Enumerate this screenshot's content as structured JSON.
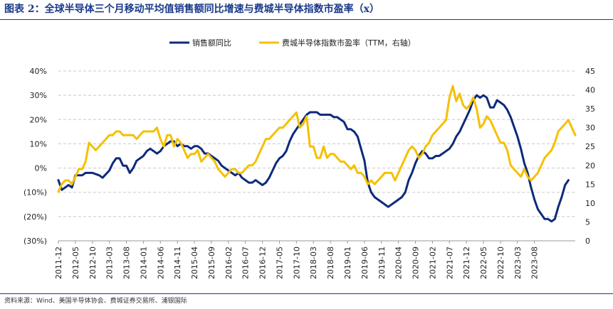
{
  "header": {
    "title": "图表 2：全球半导体三个月移动平均值销售额同比增速与费城半导体指数市盈率（x）"
  },
  "footer": {
    "source": "资料来源：Wind、美国半导体协会、费城证券交易所、浦银国际"
  },
  "colors": {
    "sales": "#0d2a7a",
    "pe": "#f5c000",
    "grid": "#c8c8c8"
  },
  "chart_data": {
    "type": "line",
    "title": "全球半导体三个月移动平均值销售额同比增速与费城半导体指数市盈率（x）",
    "legend_position": "top-center",
    "x_tick_labels": [
      "2011-12",
      "2012-05",
      "2012-10",
      "2013-03",
      "2013-08",
      "2014-01",
      "2014-06",
      "2014-11",
      "2015-04",
      "2015-09",
      "2016-02",
      "2016-07",
      "2016-12",
      "2017-05",
      "2017-10",
      "2018-03",
      "2018-08",
      "2019-01",
      "2019-06",
      "2019-11",
      "2020-04",
      "2020-09",
      "2021-02",
      "2021-07",
      "2021-12",
      "2022-05",
      "2022-10",
      "2023-03",
      "2023-08"
    ],
    "left_axis": {
      "ylim": [
        -30,
        40
      ],
      "ticks": [
        "(30%)",
        "(20%)",
        "(10%)",
        "0%",
        "10%",
        "20%",
        "30%",
        "40%"
      ],
      "tick_values": [
        -30,
        -20,
        -10,
        0,
        10,
        20,
        30,
        40
      ]
    },
    "right_axis": {
      "ylim": [
        0,
        45
      ],
      "ticks": [
        "0",
        "5",
        "10",
        "15",
        "20",
        "25",
        "30",
        "35",
        "40",
        "45"
      ],
      "tick_values": [
        0,
        5,
        10,
        15,
        20,
        25,
        30,
        35,
        40,
        45
      ]
    },
    "series": [
      {
        "name": "销售额同比",
        "axis": "left",
        "points": [
          [
            0,
            -5
          ],
          [
            1,
            -9
          ],
          [
            3,
            -7
          ],
          [
            4,
            -8
          ],
          [
            5,
            -3
          ],
          [
            7,
            -3
          ],
          [
            8,
            -2
          ],
          [
            10,
            -2
          ],
          [
            12,
            -3
          ],
          [
            13,
            -4
          ],
          [
            15,
            -1
          ],
          [
            16,
            2
          ],
          [
            17,
            4
          ],
          [
            18,
            4
          ],
          [
            19,
            1
          ],
          [
            20,
            1
          ],
          [
            21,
            -2
          ],
          [
            22,
            0
          ],
          [
            23,
            3
          ],
          [
            25,
            5
          ],
          [
            26,
            7
          ],
          [
            27,
            8
          ],
          [
            28,
            7
          ],
          [
            29,
            6
          ],
          [
            30,
            7
          ],
          [
            31,
            9
          ],
          [
            32,
            10
          ],
          [
            33,
            11
          ],
          [
            34,
            11
          ],
          [
            35,
            9
          ],
          [
            36,
            10
          ],
          [
            37,
            9
          ],
          [
            38,
            9
          ],
          [
            39,
            8
          ],
          [
            40,
            9
          ],
          [
            41,
            9
          ],
          [
            42,
            8
          ],
          [
            43,
            6
          ],
          [
            44,
            6
          ],
          [
            45,
            5
          ],
          [
            46,
            4
          ],
          [
            47,
            3
          ],
          [
            48,
            1
          ],
          [
            49,
            0
          ],
          [
            50,
            -1
          ],
          [
            51,
            -2
          ],
          [
            52,
            -3
          ],
          [
            53,
            -2
          ],
          [
            54,
            -4
          ],
          [
            55,
            -5
          ],
          [
            56,
            -6
          ],
          [
            57,
            -6
          ],
          [
            58,
            -5
          ],
          [
            59,
            -6
          ],
          [
            60,
            -7
          ],
          [
            61,
            -6
          ],
          [
            62,
            -4
          ],
          [
            63,
            -1
          ],
          [
            64,
            2
          ],
          [
            65,
            4
          ],
          [
            66,
            5
          ],
          [
            67,
            7
          ],
          [
            68,
            11
          ],
          [
            69,
            14
          ],
          [
            70,
            16
          ],
          [
            71,
            18
          ],
          [
            72,
            20
          ],
          [
            73,
            22
          ],
          [
            74,
            23
          ],
          [
            75,
            23
          ],
          [
            76,
            23
          ],
          [
            77,
            22
          ],
          [
            78,
            22
          ],
          [
            79,
            22
          ],
          [
            80,
            22
          ],
          [
            81,
            21
          ],
          [
            82,
            21
          ],
          [
            83,
            20
          ],
          [
            84,
            19
          ],
          [
            85,
            16
          ],
          [
            86,
            16
          ],
          [
            87,
            15
          ],
          [
            88,
            13
          ],
          [
            89,
            8
          ],
          [
            90,
            3
          ],
          [
            91,
            -6
          ],
          [
            92,
            -10
          ],
          [
            93,
            -12
          ],
          [
            94,
            -13
          ],
          [
            95,
            -14
          ],
          [
            96,
            -15
          ],
          [
            97,
            -16
          ],
          [
            98,
            -15
          ],
          [
            99,
            -14
          ],
          [
            100,
            -13
          ],
          [
            101,
            -12
          ],
          [
            102,
            -10
          ],
          [
            103,
            -5
          ],
          [
            104,
            -2
          ],
          [
            105,
            2
          ],
          [
            106,
            5
          ],
          [
            107,
            7
          ],
          [
            108,
            6
          ],
          [
            109,
            4
          ],
          [
            110,
            4
          ],
          [
            111,
            5
          ],
          [
            112,
            5
          ],
          [
            113,
            6
          ],
          [
            114,
            7
          ],
          [
            115,
            8
          ],
          [
            116,
            10
          ],
          [
            117,
            13
          ],
          [
            118,
            15
          ],
          [
            119,
            18
          ],
          [
            120,
            21
          ],
          [
            121,
            24
          ],
          [
            122,
            28
          ],
          [
            123,
            30
          ],
          [
            124,
            29
          ],
          [
            125,
            30
          ],
          [
            126,
            29
          ],
          [
            127,
            25
          ],
          [
            128,
            25
          ],
          [
            129,
            28
          ],
          [
            130,
            27
          ],
          [
            131,
            26
          ],
          [
            132,
            24
          ],
          [
            133,
            21
          ],
          [
            134,
            17
          ],
          [
            135,
            13
          ],
          [
            136,
            8
          ],
          [
            137,
            2
          ],
          [
            138,
            -2
          ],
          [
            139,
            -8
          ],
          [
            140,
            -13
          ],
          [
            141,
            -17
          ],
          [
            142,
            -19
          ],
          [
            143,
            -21
          ],
          [
            144,
            -21
          ],
          [
            145,
            -22
          ],
          [
            146,
            -21
          ],
          [
            147,
            -16
          ],
          [
            148,
            -12
          ],
          [
            149,
            -7
          ],
          [
            150,
            -5
          ]
        ]
      },
      {
        "name": "费城半导体指数市盈率（TTM，右轴）",
        "axis": "right",
        "points": [
          [
            0,
            13
          ],
          [
            1,
            15
          ],
          [
            2,
            16
          ],
          [
            3,
            16
          ],
          [
            4,
            15
          ],
          [
            5,
            17
          ],
          [
            6,
            19
          ],
          [
            7,
            19
          ],
          [
            8,
            21
          ],
          [
            9,
            26
          ],
          [
            10,
            25
          ],
          [
            11,
            24
          ],
          [
            12,
            25
          ],
          [
            13,
            26
          ],
          [
            14,
            27
          ],
          [
            15,
            28
          ],
          [
            16,
            28
          ],
          [
            17,
            29
          ],
          [
            18,
            29
          ],
          [
            19,
            28
          ],
          [
            20,
            28
          ],
          [
            21,
            28
          ],
          [
            22,
            28
          ],
          [
            23,
            27
          ],
          [
            24,
            28
          ],
          [
            25,
            29
          ],
          [
            26,
            29
          ],
          [
            27,
            29
          ],
          [
            28,
            29
          ],
          [
            29,
            30
          ],
          [
            30,
            27
          ],
          [
            31,
            25
          ],
          [
            32,
            28
          ],
          [
            33,
            28
          ],
          [
            34,
            25
          ],
          [
            35,
            27
          ],
          [
            36,
            26
          ],
          [
            37,
            24
          ],
          [
            38,
            22
          ],
          [
            39,
            23
          ],
          [
            40,
            23
          ],
          [
            41,
            24
          ],
          [
            42,
            21
          ],
          [
            43,
            22
          ],
          [
            44,
            23
          ],
          [
            45,
            22
          ],
          [
            46,
            21
          ],
          [
            47,
            19
          ],
          [
            48,
            18
          ],
          [
            49,
            17
          ],
          [
            50,
            18
          ],
          [
            51,
            19
          ],
          [
            52,
            19
          ],
          [
            53,
            18
          ],
          [
            54,
            18
          ],
          [
            55,
            19
          ],
          [
            56,
            20
          ],
          [
            57,
            20
          ],
          [
            58,
            21
          ],
          [
            59,
            23
          ],
          [
            60,
            25
          ],
          [
            61,
            27
          ],
          [
            62,
            27
          ],
          [
            63,
            28
          ],
          [
            64,
            29
          ],
          [
            65,
            30
          ],
          [
            66,
            30
          ],
          [
            67,
            31
          ],
          [
            68,
            32
          ],
          [
            69,
            33
          ],
          [
            70,
            34
          ],
          [
            71,
            30
          ],
          [
            72,
            31
          ],
          [
            73,
            33
          ],
          [
            74,
            25
          ],
          [
            75,
            25
          ],
          [
            76,
            22
          ],
          [
            77,
            22
          ],
          [
            78,
            25
          ],
          [
            79,
            22
          ],
          [
            80,
            23
          ],
          [
            81,
            23
          ],
          [
            82,
            22
          ],
          [
            83,
            21
          ],
          [
            84,
            21
          ],
          [
            85,
            20
          ],
          [
            86,
            19
          ],
          [
            87,
            20
          ],
          [
            88,
            18
          ],
          [
            89,
            18
          ],
          [
            90,
            17
          ],
          [
            91,
            15
          ],
          [
            92,
            16
          ],
          [
            93,
            15
          ],
          [
            94,
            16
          ],
          [
            95,
            17
          ],
          [
            96,
            18
          ],
          [
            97,
            18
          ],
          [
            98,
            18
          ],
          [
            99,
            16
          ],
          [
            100,
            18
          ],
          [
            101,
            20
          ],
          [
            102,
            22
          ],
          [
            103,
            24
          ],
          [
            104,
            25
          ],
          [
            105,
            24
          ],
          [
            106,
            22
          ],
          [
            107,
            23
          ],
          [
            108,
            25
          ],
          [
            109,
            26
          ],
          [
            110,
            28
          ],
          [
            111,
            29
          ],
          [
            112,
            30
          ],
          [
            113,
            31
          ],
          [
            114,
            32
          ],
          [
            115,
            38
          ],
          [
            116,
            41
          ],
          [
            117,
            37
          ],
          [
            118,
            39
          ],
          [
            119,
            36
          ],
          [
            120,
            35
          ],
          [
            121,
            36
          ],
          [
            122,
            38
          ],
          [
            123,
            35
          ],
          [
            124,
            30
          ],
          [
            125,
            31
          ],
          [
            126,
            33
          ],
          [
            127,
            32
          ],
          [
            128,
            30
          ],
          [
            129,
            28
          ],
          [
            130,
            26
          ],
          [
            131,
            26
          ],
          [
            132,
            24
          ],
          [
            133,
            20
          ],
          [
            134,
            19
          ],
          [
            135,
            18
          ],
          [
            136,
            17
          ],
          [
            137,
            19
          ],
          [
            138,
            17
          ],
          [
            139,
            16
          ],
          [
            140,
            17
          ],
          [
            141,
            18
          ],
          [
            142,
            20
          ],
          [
            143,
            22
          ],
          [
            144,
            23
          ],
          [
            145,
            24
          ],
          [
            146,
            26
          ],
          [
            147,
            29
          ],
          [
            148,
            30
          ],
          [
            149,
            31
          ],
          [
            150,
            32
          ],
          [
            151,
            30
          ],
          [
            152,
            28
          ]
        ]
      }
    ],
    "x_range": [
      0,
      152
    ],
    "x_ticks_index": [
      0,
      5,
      10,
      15,
      20,
      25,
      30,
      35,
      40,
      45,
      50,
      55,
      60,
      65,
      70,
      75,
      80,
      85,
      90,
      95,
      100,
      105,
      110,
      115,
      120,
      125,
      130,
      135,
      140
    ]
  }
}
